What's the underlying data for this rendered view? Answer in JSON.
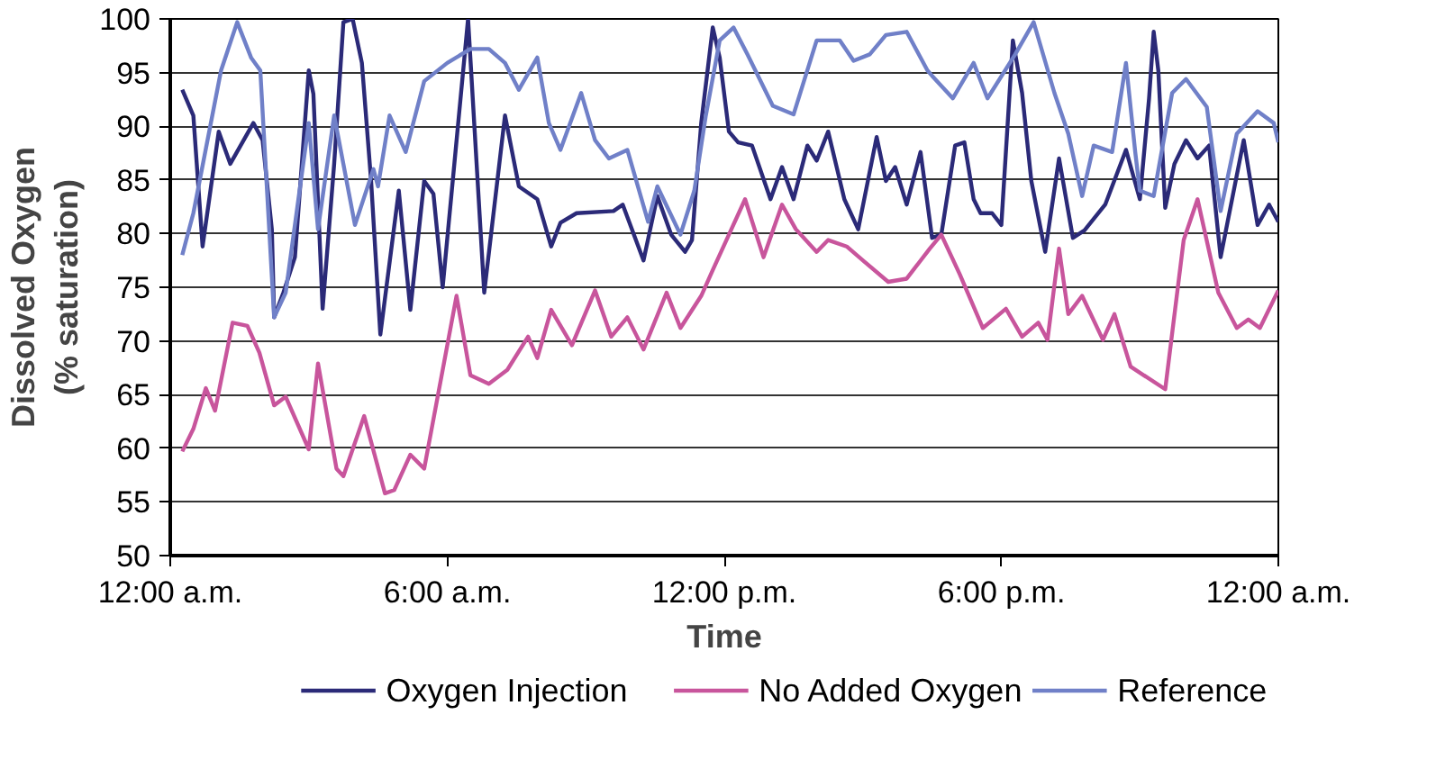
{
  "chart_data": {
    "type": "line",
    "xlabel": "Time",
    "ylabel": "Dissolved Oxygen\n(% saturation)",
    "xlim": [
      0,
      24
    ],
    "ylim": [
      50,
      100
    ],
    "xticks": [
      {
        "value": 0,
        "label": "12:00 a.m."
      },
      {
        "value": 6,
        "label": "6:00 a.m."
      },
      {
        "value": 12,
        "label": "12:00 p.m."
      },
      {
        "value": 18,
        "label": "6:00 p.m."
      },
      {
        "value": 24,
        "label": "12:00 a.m."
      }
    ],
    "yticks": [
      50,
      55,
      60,
      65,
      70,
      75,
      80,
      85,
      90,
      95,
      100
    ],
    "grid": "y",
    "legend": "bottom",
    "line_style": "solid",
    "marker": "none",
    "series": [
      {
        "name": "Oxygen Injection",
        "color": "#2b2a78",
        "x": [
          0.26,
          0.5,
          0.7,
          1.05,
          1.3,
          1.8,
          2.0,
          2.2,
          2.25,
          2.45,
          2.7,
          3.0,
          3.1,
          3.3,
          3.55,
          3.75,
          3.95,
          4.15,
          4.35,
          4.55,
          4.95,
          5.2,
          5.5,
          5.7,
          5.9,
          6.45,
          6.8,
          7.25,
          7.55,
          7.95,
          8.25,
          8.45,
          8.8,
          9.6,
          9.8,
          10.25,
          10.55,
          10.85,
          11.15,
          11.3,
          11.5,
          11.75,
          11.9,
          12.1,
          12.3,
          12.6,
          13.0,
          13.25,
          13.5,
          13.8,
          14.0,
          14.25,
          14.6,
          14.9,
          15.3,
          15.5,
          15.7,
          15.95,
          16.25,
          16.5,
          16.7,
          17.0,
          17.2,
          17.4,
          17.55,
          17.8,
          18.0,
          18.25,
          18.45,
          18.65,
          18.95,
          19.25,
          19.55,
          19.8,
          20.25,
          20.7,
          21.0,
          21.2,
          21.3,
          21.4,
          21.55,
          21.75,
          22.0,
          22.25,
          22.5,
          22.75,
          23.25,
          23.55,
          23.8,
          24.0
        ],
        "values": [
          93.4,
          91,
          78.8,
          89.5,
          86.5,
          90.3,
          88.7,
          80.4,
          72.2,
          74.5,
          77.8,
          95.2,
          93,
          73,
          86.5,
          99.7,
          100,
          95.9,
          84.9,
          70.6,
          84,
          72.9,
          84.9,
          83.7,
          75,
          100,
          74.5,
          91,
          84.4,
          83.2,
          78.8,
          81,
          81.9,
          82.1,
          82.7,
          77.5,
          83.5,
          79.9,
          78.3,
          79.4,
          90.3,
          99.2,
          96.4,
          89.5,
          88.5,
          88.2,
          83.2,
          86.2,
          83.2,
          88.2,
          86.8,
          89.5,
          83.2,
          80.4,
          89,
          84.9,
          86.2,
          82.7,
          87.6,
          79.6,
          79.9,
          88.2,
          88.5,
          83.2,
          81.9,
          81.9,
          80.8,
          98,
          93.1,
          84.9,
          78.3,
          87,
          79.6,
          80.3,
          82.7,
          87.8,
          83.2,
          92.6,
          98.8,
          95.2,
          82.4,
          86.5,
          88.7,
          87,
          88.2,
          77.8,
          88.7,
          80.8,
          82.7,
          81.1
        ]
      },
      {
        "name": "No Added Oxygen",
        "color": "#c8559c",
        "x": [
          0.26,
          0.5,
          0.77,
          0.97,
          1.35,
          1.67,
          1.93,
          2.25,
          2.5,
          3.0,
          3.2,
          3.6,
          3.75,
          4.2,
          4.65,
          4.85,
          5.2,
          5.5,
          5.9,
          6.2,
          6.5,
          6.9,
          7.3,
          7.75,
          7.95,
          8.25,
          8.7,
          9.2,
          9.55,
          9.9,
          10.25,
          10.75,
          11.05,
          11.5,
          11.75,
          12.45,
          12.85,
          13.25,
          13.55,
          14.0,
          14.25,
          14.65,
          15.0,
          15.55,
          15.95,
          16.45,
          16.7,
          17.1,
          17.6,
          18.1,
          18.45,
          18.8,
          19.0,
          19.25,
          19.45,
          19.75,
          20.2,
          20.45,
          20.8,
          21.55,
          21.95,
          22.25,
          22.7,
          23.1,
          23.35,
          23.6,
          24.0
        ],
        "values": [
          59.7,
          61.8,
          65.6,
          63.5,
          71.7,
          71.4,
          68.9,
          64,
          64.8,
          59.9,
          67.9,
          58.1,
          57.4,
          63,
          55.8,
          56.1,
          59.4,
          58.1,
          67.3,
          74.2,
          66.8,
          66,
          67.3,
          70.4,
          68.4,
          72.9,
          69.6,
          74.7,
          70.4,
          72.2,
          69.2,
          74.5,
          71.2,
          74.2,
          76.6,
          83.2,
          77.8,
          82.7,
          80.4,
          78.3,
          79.4,
          78.8,
          77.5,
          75.5,
          75.8,
          78.6,
          79.9,
          76.2,
          71.2,
          73,
          70.4,
          71.7,
          70.1,
          78.6,
          72.5,
          74.2,
          70.1,
          72.5,
          67.6,
          65.5,
          79.4,
          83.2,
          74.5,
          71.2,
          72,
          71.2,
          74.7
        ]
      },
      {
        "name": "Reference",
        "color": "#7080c8",
        "x": [
          0.26,
          0.5,
          1.1,
          1.45,
          1.75,
          1.95,
          2.25,
          2.5,
          3.0,
          3.2,
          3.55,
          4.0,
          4.4,
          4.5,
          4.75,
          5.1,
          5.5,
          6.0,
          6.5,
          6.9,
          7.25,
          7.55,
          7.95,
          8.2,
          8.45,
          8.9,
          9.2,
          9.5,
          9.9,
          10.35,
          10.55,
          11.05,
          11.35,
          11.6,
          11.9,
          12.2,
          12.5,
          13.05,
          13.5,
          14.0,
          14.5,
          14.8,
          15.15,
          15.5,
          15.95,
          16.4,
          16.5,
          16.95,
          17.4,
          17.7,
          18.3,
          18.7,
          19.15,
          19.45,
          19.75,
          20.0,
          20.4,
          20.7,
          20.9,
          21.0,
          21.3,
          21.7,
          22.0,
          22.45,
          22.75,
          23.1,
          23.55,
          23.9,
          24.0
        ],
        "values": [
          78,
          81.9,
          95.2,
          99.7,
          96.4,
          95.2,
          72.2,
          74.5,
          90.3,
          80.4,
          91,
          80.8,
          86,
          84.4,
          91,
          87.6,
          94.2,
          95.9,
          97.2,
          97.2,
          95.9,
          93.4,
          96.4,
          90.3,
          87.8,
          93.1,
          88.7,
          87,
          87.8,
          81.1,
          84.4,
          79.9,
          84,
          91,
          98,
          99.2,
          96.7,
          91.9,
          91.1,
          98,
          98,
          96.1,
          96.7,
          98.5,
          98.8,
          95.2,
          94.7,
          92.6,
          95.9,
          92.6,
          96.7,
          99.7,
          93.1,
          89.3,
          83.5,
          88.2,
          87.6,
          95.9,
          87.6,
          84,
          83.5,
          93.1,
          94.4,
          91.8,
          82.1,
          89.3,
          91.4,
          90.3,
          88.5
        ]
      }
    ]
  }
}
